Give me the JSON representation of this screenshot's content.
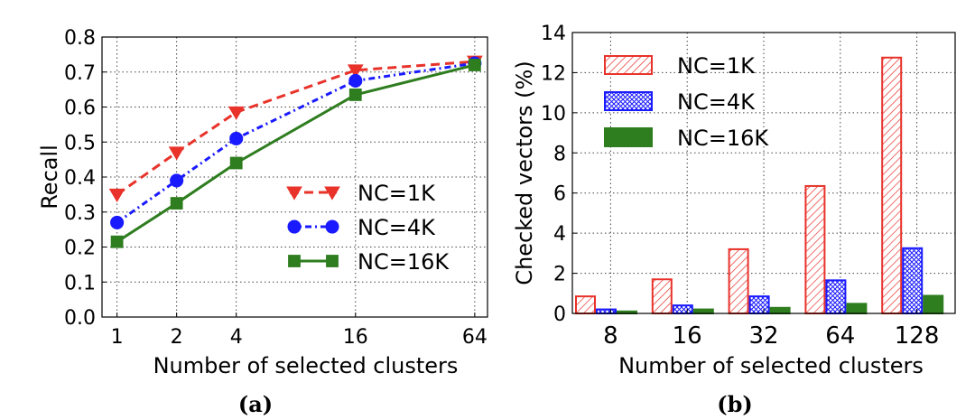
{
  "chart_data": [
    {
      "type": "line",
      "caption": "(a)",
      "xlabel": "Number of selected clusters",
      "ylabel": "Recall",
      "xscale": "log2",
      "x": [
        1,
        2,
        4,
        16,
        64
      ],
      "xticklabels": [
        "1",
        "2",
        "4",
        "16",
        "64"
      ],
      "ylim": [
        0.0,
        0.8
      ],
      "yticks": [
        "0.0",
        "0.1",
        "0.2",
        "0.3",
        "0.4",
        "0.5",
        "0.6",
        "0.7",
        "0.8"
      ],
      "grid": true,
      "legend_position": "lower-right",
      "series": [
        {
          "name": "NC=1K",
          "values": [
            0.35,
            0.47,
            0.585,
            0.705,
            0.73
          ],
          "color": "#e8322a",
          "marker": "triangle-down",
          "linestyle": "dashed"
        },
        {
          "name": "NC=4K",
          "values": [
            0.27,
            0.39,
            0.51,
            0.675,
            0.725
          ],
          "color": "#1a1aff",
          "marker": "circle",
          "linestyle": "dash-dot"
        },
        {
          "name": "NC=16K",
          "values": [
            0.215,
            0.325,
            0.44,
            0.635,
            0.72
          ],
          "color": "#2e7d1f",
          "marker": "square",
          "linestyle": "solid"
        }
      ]
    },
    {
      "type": "bar",
      "caption": "(b)",
      "xlabel": "Number of selected clusters",
      "ylabel": "Checked vectors (%)",
      "categories": [
        "8",
        "16",
        "32",
        "64",
        "128"
      ],
      "ylim": [
        0,
        14
      ],
      "yticks": [
        "0",
        "2",
        "4",
        "6",
        "8",
        "10",
        "12",
        "14"
      ],
      "grid": true,
      "legend_position": "top-left",
      "series": [
        {
          "name": "NC=1K",
          "values": [
            0.85,
            1.7,
            3.2,
            6.35,
            12.75
          ],
          "color": "#e8322a",
          "pattern": "diagonal-hatch"
        },
        {
          "name": "NC=4K",
          "values": [
            0.2,
            0.4,
            0.85,
            1.65,
            3.25
          ],
          "color": "#1a1aff",
          "pattern": "cross-hatch"
        },
        {
          "name": "NC=16K",
          "values": [
            0.1,
            0.2,
            0.28,
            0.48,
            0.88
          ],
          "color": "#2e7d1f",
          "pattern": "solid"
        }
      ]
    }
  ]
}
